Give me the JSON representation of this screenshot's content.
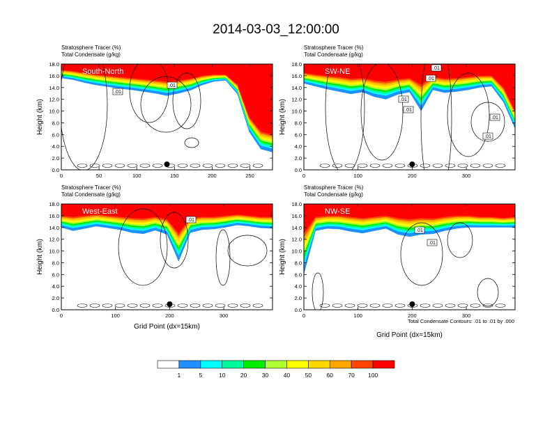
{
  "title": "2014-03-03_12:00:00",
  "panels": [
    {
      "label": "South-North",
      "subtitle_line1": "Stratosphere Tracer   (%)",
      "subtitle_line2": "Total Condensate   (g/kg)",
      "ylabel": "Height (km)",
      "xlabel": "",
      "xticks": [
        "0",
        "50",
        "100",
        "150",
        "200",
        "250"
      ],
      "contour_labels": [
        ".01",
        ".01"
      ]
    },
    {
      "label": "SW-NE",
      "subtitle_line1": "Stratosphere Tracer   (%)",
      "subtitle_line2": "Total Condensate   (g/kg)",
      "ylabel": "Height (km)",
      "xlabel": "",
      "xticks": [
        "0",
        "100",
        "200",
        "300"
      ],
      "contour_labels": [
        ".01",
        ".01",
        ".01",
        ".01",
        ".01",
        ".01"
      ]
    },
    {
      "label": "West-East",
      "subtitle_line1": "Stratosphere Tracer   (%)",
      "subtitle_line2": "Total Condensate   (g/kg)",
      "ylabel": "Height (km)",
      "xlabel": "Grid Point (dx=15km)",
      "xticks": [
        "0",
        "100",
        "200",
        "300"
      ],
      "contour_labels": [
        ".01"
      ]
    },
    {
      "label": "NW-SE",
      "subtitle_line1": "Stratosphere Tracer   (%)",
      "subtitle_line2": "Total Condensate   (g/kg)",
      "ylabel": "Height (km)",
      "xlabel": "Grid Point (dx=15km)",
      "xticks": [
        "0",
        "100",
        "200",
        "300"
      ],
      "contour_labels": [
        ".01",
        ".01"
      ]
    }
  ],
  "contour_note": "Total Condensate Contours: .01 to .01 by .000",
  "colorbar": {
    "labels": [
      "1",
      "5",
      "10",
      "20",
      "30",
      "40",
      "50",
      "60",
      "70",
      "100"
    ],
    "colors": [
      "#ffffff",
      "#1e90ff",
      "#00ffff",
      "#00fa9a",
      "#00ee00",
      "#adff2f",
      "#ffff00",
      "#ffd700",
      "#ffa500",
      "#ff4500",
      "#ff0000"
    ]
  },
  "chart_data": [
    {
      "type": "heatmap",
      "title": "South-North",
      "xlabel": "",
      "ylabel": "Height (km)",
      "xlim": [
        0,
        280
      ],
      "ylim": [
        0,
        18
      ],
      "yticks": [
        0,
        2,
        4,
        6,
        8,
        10,
        12,
        14,
        16,
        18
      ],
      "tracer_top_km": [
        17,
        16.8,
        16.5,
        16.2,
        16.0,
        15.8,
        15.6,
        15.4,
        15.2,
        15.0,
        15.2,
        15.5,
        16.0,
        16.2,
        16.2,
        14.5,
        9,
        6.5,
        6.0
      ],
      "tracer_band_km": [
        1.4,
        1.5,
        1.7,
        1.8,
        1.9,
        2.0,
        2.0,
        2.1,
        2.2,
        2.4,
        2.2,
        2.0,
        1.6,
        1.2,
        1.0,
        1.6,
        2.5,
        3,
        3
      ],
      "marker_x": 140
    },
    {
      "type": "heatmap",
      "title": "SW-NE",
      "xlabel": "",
      "ylabel": "Height (km)",
      "xlim": [
        0,
        390
      ],
      "ylim": [
        0,
        18
      ],
      "yticks": [
        0,
        2,
        4,
        6,
        8,
        10,
        12,
        14,
        16,
        18
      ],
      "tracer_top_km": [
        16.5,
        16.2,
        16.0,
        15.8,
        15.5,
        15.6,
        15.2,
        15.0,
        15.4,
        15.6,
        14.5,
        15.8,
        15.5,
        15.6,
        15.8,
        16.0,
        16.0,
        14.0,
        10.0
      ],
      "tracer_band_km": [
        1.8,
        2.0,
        2.3,
        2.5,
        2.6,
        2.4,
        2.8,
        3.0,
        2.6,
        2.4,
        4.5,
        2.2,
        2.4,
        2.3,
        2.2,
        2.0,
        1.8,
        2.5,
        3.0
      ],
      "marker_x": 200
    },
    {
      "type": "heatmap",
      "title": "West-East",
      "xlabel": "Grid Point (dx=15km)",
      "ylabel": "Height (km)",
      "xlim": [
        0,
        390
      ],
      "ylim": [
        0,
        18
      ],
      "yticks": [
        0,
        2,
        4,
        6,
        8,
        10,
        12,
        14,
        16,
        18
      ],
      "tracer_top_km": [
        16.0,
        15.8,
        16.0,
        16.2,
        16.0,
        15.8,
        15.6,
        15.5,
        15.8,
        15.4,
        13.0,
        15.6,
        15.8,
        15.8,
        16.0,
        16.2,
        16.0,
        15.8,
        15.8
      ],
      "tracer_band_km": [
        2.0,
        2.4,
        2.2,
        2.0,
        2.1,
        2.2,
        2.5,
        2.6,
        2.3,
        2.6,
        4.8,
        2.5,
        2.2,
        2.1,
        2.0,
        1.8,
        1.8,
        1.9,
        2.0
      ],
      "marker_x": 200
    },
    {
      "type": "heatmap",
      "title": "NW-SE",
      "xlabel": "Grid Point (dx=15km)",
      "ylabel": "Height (km)",
      "xlim": [
        0,
        390
      ],
      "ylim": [
        0,
        18
      ],
      "yticks": [
        0,
        2,
        4,
        6,
        8,
        10,
        12,
        14,
        16,
        18
      ],
      "tracer_top_km": [
        13.0,
        15.8,
        16.0,
        16.0,
        15.8,
        15.6,
        15.8,
        16.0,
        15.6,
        15.4,
        15.6,
        15.5,
        15.8,
        16.0,
        16.0,
        15.8,
        15.8,
        15.6,
        15.8
      ],
      "tracer_band_km": [
        7.0,
        2.4,
        2.2,
        2.3,
        2.5,
        2.6,
        2.4,
        2.2,
        2.8,
        3.0,
        2.8,
        2.6,
        2.4,
        2.2,
        2.0,
        1.8,
        1.8,
        1.6,
        1.8
      ],
      "marker_x": 200
    }
  ]
}
